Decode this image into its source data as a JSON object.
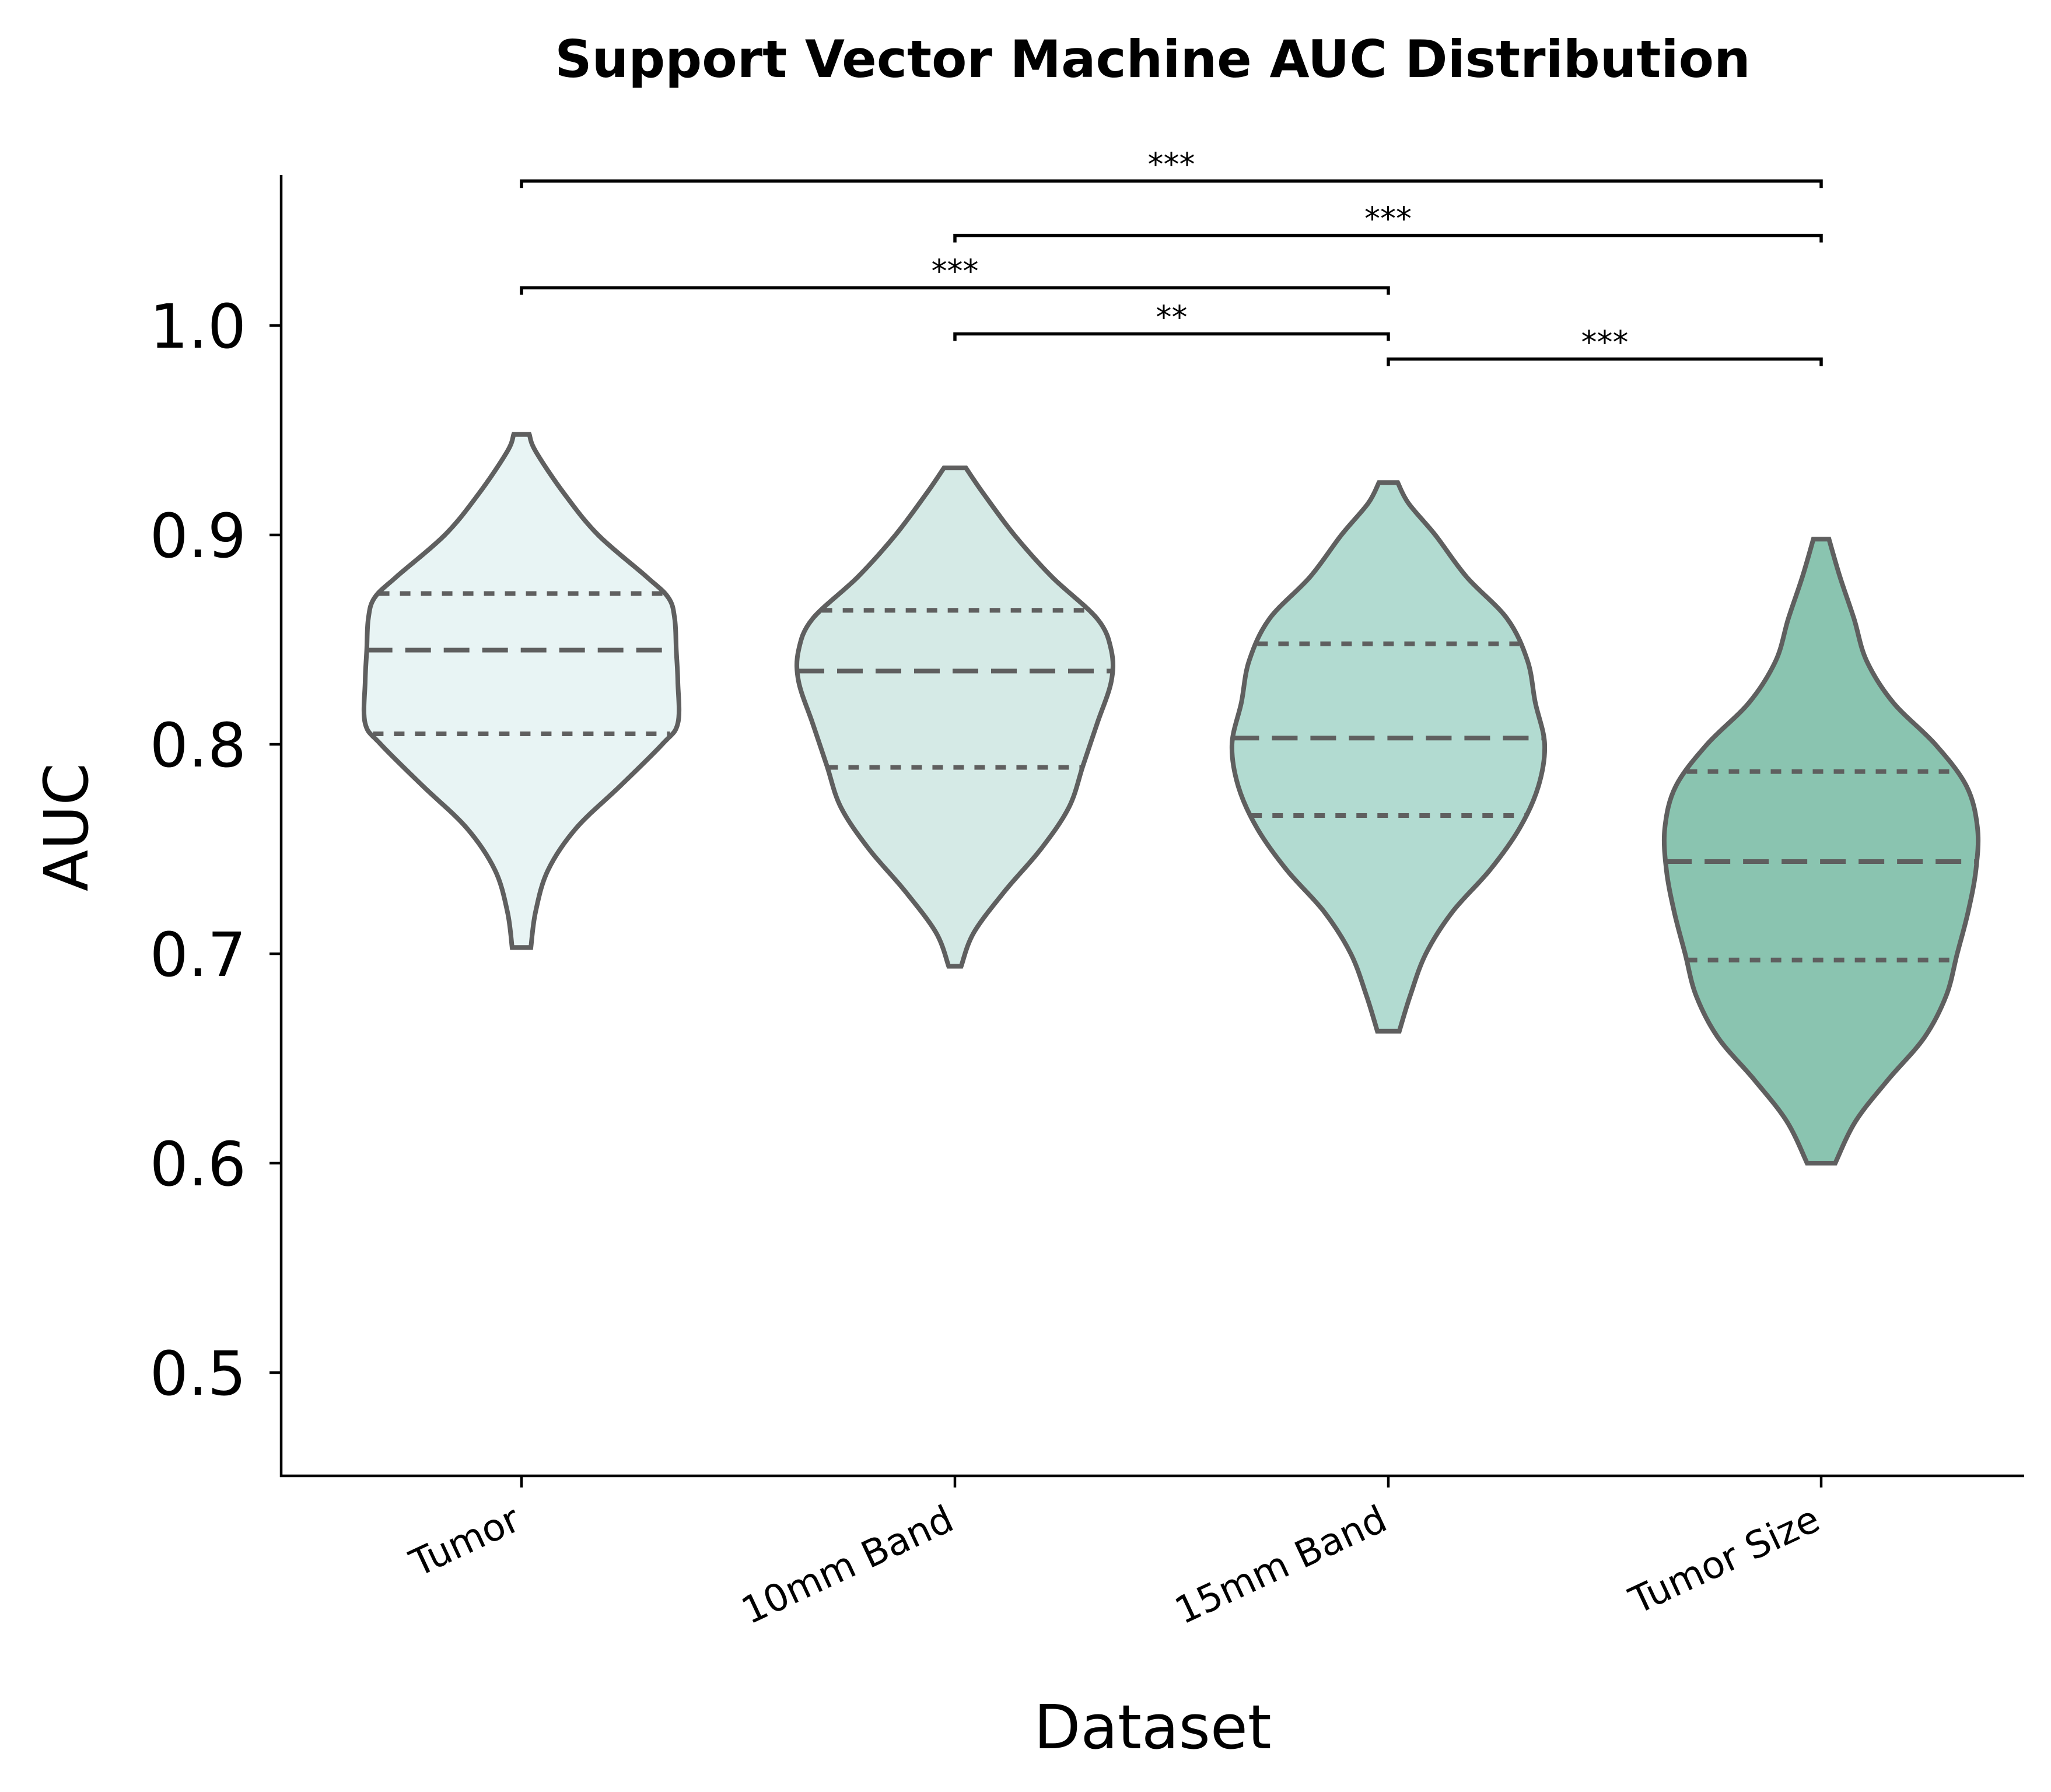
{
  "chart_data": {
    "type": "violin",
    "title": "Support Vector Machine AUC Distribution",
    "xlabel": "Dataset",
    "ylabel": "AUC",
    "ylim": [
      0.45,
      1.07
    ],
    "yticks": [
      0.5,
      0.6,
      0.7,
      0.8,
      0.9,
      1.0
    ],
    "ytick_labels": [
      "0.5",
      "0.6",
      "0.7",
      "0.8",
      "0.9",
      "1.0"
    ],
    "grid": false,
    "categories": [
      "Tumor",
      "10mm Band",
      "15mm Band",
      "Tumor Size"
    ],
    "series": [
      {
        "category": "Tumor",
        "color": "#e8f4f4",
        "min": 0.703,
        "max": 0.948,
        "q1": 0.805,
        "median": 0.845,
        "q3": 0.872,
        "density": [
          [
            0.703,
            0.06
          ],
          [
            0.72,
            0.09
          ],
          [
            0.74,
            0.17
          ],
          [
            0.76,
            0.35
          ],
          [
            0.78,
            0.63
          ],
          [
            0.8,
            0.9
          ],
          [
            0.81,
            1.0
          ],
          [
            0.83,
            1.0
          ],
          [
            0.845,
            0.99
          ],
          [
            0.86,
            0.98
          ],
          [
            0.87,
            0.94
          ],
          [
            0.88,
            0.8
          ],
          [
            0.9,
            0.49
          ],
          [
            0.92,
            0.27
          ],
          [
            0.94,
            0.09
          ],
          [
            0.948,
            0.05
          ]
        ]
      },
      {
        "category": "10mm Band",
        "color": "#d5eae6",
        "min": 0.694,
        "max": 0.932,
        "q1": 0.789,
        "median": 0.835,
        "q3": 0.864,
        "density": [
          [
            0.694,
            0.04
          ],
          [
            0.71,
            0.12
          ],
          [
            0.73,
            0.32
          ],
          [
            0.75,
            0.55
          ],
          [
            0.77,
            0.73
          ],
          [
            0.79,
            0.82
          ],
          [
            0.81,
            0.91
          ],
          [
            0.83,
            1.0
          ],
          [
            0.845,
            1.0
          ],
          [
            0.86,
            0.91
          ],
          [
            0.88,
            0.62
          ],
          [
            0.9,
            0.38
          ],
          [
            0.92,
            0.18
          ],
          [
            0.932,
            0.07
          ]
        ]
      },
      {
        "category": "15mm Band",
        "color": "#b2dbd1",
        "min": 0.663,
        "max": 0.925,
        "q1": 0.766,
        "median": 0.803,
        "q3": 0.848,
        "density": [
          [
            0.663,
            0.07
          ],
          [
            0.68,
            0.14
          ],
          [
            0.7,
            0.24
          ],
          [
            0.72,
            0.41
          ],
          [
            0.74,
            0.65
          ],
          [
            0.76,
            0.84
          ],
          [
            0.78,
            0.96
          ],
          [
            0.8,
            1.0
          ],
          [
            0.82,
            0.94
          ],
          [
            0.84,
            0.89
          ],
          [
            0.86,
            0.76
          ],
          [
            0.88,
            0.5
          ],
          [
            0.9,
            0.3
          ],
          [
            0.915,
            0.13
          ],
          [
            0.925,
            0.06
          ]
        ]
      },
      {
        "category": "Tumor Size",
        "color": "#8ac4b0",
        "min": 0.6,
        "max": 0.898,
        "q1": 0.697,
        "median": 0.744,
        "q3": 0.787,
        "density": [
          [
            0.6,
            0.09
          ],
          [
            0.62,
            0.22
          ],
          [
            0.64,
            0.43
          ],
          [
            0.66,
            0.66
          ],
          [
            0.68,
            0.8
          ],
          [
            0.7,
            0.87
          ],
          [
            0.72,
            0.94
          ],
          [
            0.74,
            0.99
          ],
          [
            0.76,
            1.0
          ],
          [
            0.78,
            0.93
          ],
          [
            0.8,
            0.73
          ],
          [
            0.82,
            0.46
          ],
          [
            0.84,
            0.29
          ],
          [
            0.86,
            0.21
          ],
          [
            0.88,
            0.12
          ],
          [
            0.898,
            0.05
          ]
        ]
      }
    ],
    "annotations": [
      {
        "from": "Tumor",
        "to": "Tumor Size",
        "y": 1.069,
        "label": "***"
      },
      {
        "from": "10mm Band",
        "to": "Tumor Size",
        "y": 1.043,
        "label": "***"
      },
      {
        "from": "Tumor",
        "to": "15mm Band",
        "y": 1.018,
        "label": "***"
      },
      {
        "from": "10mm Band",
        "to": "15mm Band",
        "y": 0.996,
        "label": "**"
      },
      {
        "from": "15mm Band",
        "to": "Tumor Size",
        "y": 0.984,
        "label": "***"
      }
    ]
  }
}
